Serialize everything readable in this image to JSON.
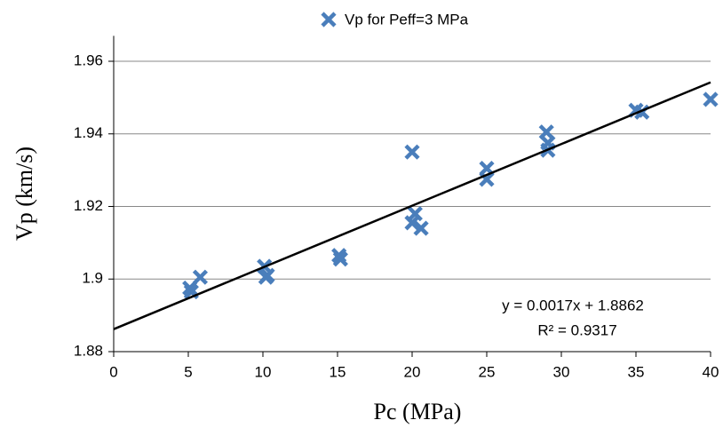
{
  "chart_data": {
    "type": "scatter",
    "x_label": "Pc (MPa)",
    "y_label": "Vp (km/s)",
    "series": [
      {
        "name": "Vp for Peff=3 MPa",
        "color": "#4a7ebb",
        "x": [
          5.1,
          5.2,
          5.8,
          10.1,
          10.2,
          10.3,
          15.1,
          15.2,
          20.0,
          20.2,
          20.0,
          20.6,
          25.0,
          25.0,
          29.0,
          29.1,
          29.1,
          35.0,
          35.4,
          40.0
        ],
        "values": [
          1.8975,
          1.8965,
          1.9005,
          1.9035,
          1.9005,
          1.901,
          1.9065,
          1.9055,
          1.935,
          1.918,
          1.9155,
          1.914,
          1.9305,
          1.9275,
          1.9405,
          1.9375,
          1.9355,
          1.9465,
          1.946,
          1.9495
        ]
      }
    ],
    "trendline": {
      "slope": 0.0017,
      "intercept": 1.8862,
      "color": "#000000",
      "label": "y = 0.0017x + 1.8862",
      "r2_label": "R² = 0.9317"
    },
    "xlim": [
      0,
      40
    ],
    "xticks": [
      0,
      5,
      10,
      15,
      20,
      25,
      30,
      35,
      40
    ],
    "ylim": [
      1.88,
      1.967
    ],
    "yticks": [
      1.88,
      1.9,
      1.92,
      1.94,
      1.96
    ],
    "grid": true,
    "legend": "top"
  }
}
